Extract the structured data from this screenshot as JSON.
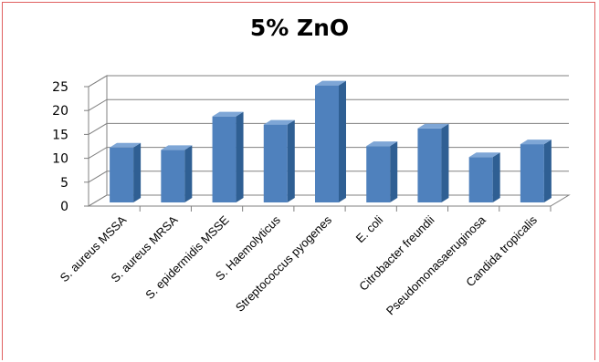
{
  "chart_data": {
    "type": "bar",
    "title": "5% ZnO",
    "categories": [
      "S. aureus MSSA",
      "S. aureus MRSA",
      "S. epidermidis MSSE",
      "S. Haemolyticus",
      "Streptococcus pyogenes",
      "E. coli",
      "Citrobacter freundii",
      "Pseudomonasaeruginosa",
      "Candida tropicalis"
    ],
    "values": [
      11.5,
      11,
      18,
      16.3,
      24.5,
      11.8,
      15.5,
      9.5,
      12.2
    ],
    "ylim": [
      0,
      25
    ],
    "yticks": [
      "0",
      "5",
      "10",
      "15",
      "20",
      "25"
    ],
    "grid": true,
    "legend": "none",
    "colors": {
      "bar_front": "#4f81bd",
      "bar_side": "#2f5f93",
      "bar_top": "#7ea6d6",
      "grid": "#808080",
      "frame": "#e06060"
    }
  }
}
